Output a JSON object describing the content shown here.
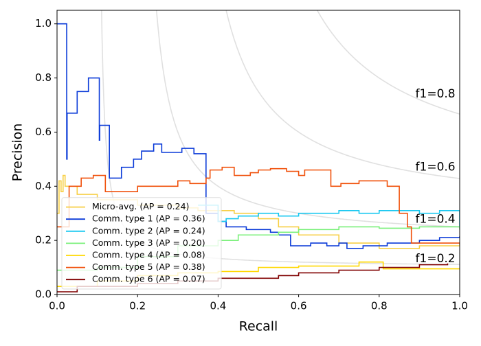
{
  "chart_data": {
    "type": "step",
    "xlabel": "Recall",
    "ylabel": "Precision",
    "xlim": [
      0,
      1
    ],
    "ylim": [
      0,
      1.05
    ],
    "xticks": [
      {
        "value": 0,
        "label": "0.0"
      },
      0.2,
      0.4,
      0.6,
      0.8,
      {
        "value": 1,
        "label": "1.0"
      }
    ],
    "yticks": [
      {
        "value": 0,
        "label": "0.0"
      },
      0.2,
      0.4,
      0.6,
      0.8,
      {
        "value": 1,
        "label": "1.0"
      }
    ],
    "iso_f1": [
      {
        "value": 0.2,
        "label": "f1=0.2"
      },
      {
        "value": 0.4,
        "label": "f1=0.4"
      },
      {
        "value": 0.6,
        "label": "f1=0.6"
      },
      {
        "value": 0.8,
        "label": "f1=0.8"
      }
    ],
    "legend": "lower left",
    "series": [
      {
        "name": "Micro-avg. (AP = 0.24)",
        "color": "#f7cf45",
        "x": [
          0,
          0.005,
          0.01,
          0.015,
          0.02,
          0.05,
          0.1,
          0.2,
          0.3,
          0.35,
          0.4,
          0.44,
          0.5,
          0.55,
          0.6,
          0.7,
          0.8,
          0.9,
          1.0
        ],
        "values": [
          0.3,
          0.42,
          0.38,
          0.44,
          0.4,
          0.37,
          0.35,
          0.33,
          0.32,
          0.31,
          0.31,
          0.3,
          0.28,
          0.25,
          0.22,
          0.19,
          0.17,
          0.18,
          0.19
        ]
      },
      {
        "name": "Comm. type 1 (AP = 0.36)",
        "color": "#0a3ad8",
        "x": [
          0,
          0.024,
          0.025,
          0.05,
          0.078,
          0.105,
          0.106,
          0.13,
          0.16,
          0.19,
          0.21,
          0.24,
          0.26,
          0.29,
          0.31,
          0.34,
          0.37,
          0.4,
          0.42,
          0.47,
          0.53,
          0.55,
          0.58,
          0.63,
          0.67,
          0.7,
          0.72,
          0.76,
          0.82,
          0.9,
          0.95,
          1.0
        ],
        "values": [
          1.0,
          0.5,
          0.67,
          0.75,
          0.8,
          0.57,
          0.625,
          0.43,
          0.47,
          0.5,
          0.53,
          0.556,
          0.525,
          0.525,
          0.54,
          0.52,
          0.3,
          0.27,
          0.25,
          0.24,
          0.23,
          0.22,
          0.18,
          0.19,
          0.18,
          0.19,
          0.17,
          0.18,
          0.19,
          0.2,
          0.21,
          0.215
        ]
      },
      {
        "name": "Comm. type 2 (AP = 0.24)",
        "color": "#19c8f0",
        "x": [
          0.35,
          0.4,
          0.42,
          0.45,
          0.5,
          0.55,
          0.6,
          0.7,
          0.75,
          0.8,
          0.9,
          0.95,
          1.0
        ],
        "values": [
          0.33,
          0.27,
          0.28,
          0.29,
          0.3,
          0.29,
          0.3,
          0.31,
          0.3,
          0.31,
          0.3,
          0.31,
          0.25
        ]
      },
      {
        "name": "Comm. type 3 (AP = 0.20)",
        "color": "#7af07a",
        "x": [
          0,
          0.1,
          0.2,
          0.3,
          0.4,
          0.45,
          0.55,
          0.6,
          0.7,
          0.8,
          0.9,
          1.0
        ],
        "values": [
          0.09,
          0.1,
          0.14,
          0.18,
          0.2,
          0.22,
          0.23,
          0.24,
          0.25,
          0.245,
          0.25,
          0.24
        ]
      },
      {
        "name": "Comm. type 4 (AP = 0.08)",
        "color": "#ffd800",
        "x": [
          0,
          0.1,
          0.2,
          0.3,
          0.4,
          0.5,
          0.6,
          0.75,
          0.81,
          1.0
        ],
        "values": [
          0.03,
          0.05,
          0.07,
          0.08,
          0.085,
          0.1,
          0.105,
          0.12,
          0.095,
          0.095
        ]
      },
      {
        "name": "Comm. type 5 (AP = 0.38)",
        "color": "#f0500a",
        "x": [
          0,
          0.03,
          0.06,
          0.09,
          0.12,
          0.2,
          0.3,
          0.33,
          0.37,
          0.38,
          0.41,
          0.44,
          0.48,
          0.5,
          0.53,
          0.57,
          0.6,
          0.615,
          0.68,
          0.705,
          0.75,
          0.82,
          0.85,
          0.87,
          0.88,
          1.0
        ],
        "values": [
          0.25,
          0.4,
          0.43,
          0.44,
          0.38,
          0.4,
          0.42,
          0.41,
          0.43,
          0.46,
          0.47,
          0.44,
          0.45,
          0.46,
          0.465,
          0.455,
          0.44,
          0.46,
          0.4,
          0.41,
          0.42,
          0.4,
          0.3,
          0.25,
          0.19,
          0.19
        ]
      },
      {
        "name": "Comm. type 6 (AP = 0.07)",
        "color": "#800000",
        "x": [
          0,
          0.05,
          0.2,
          0.3,
          0.4,
          0.55,
          0.6,
          0.7,
          0.8,
          0.9,
          0.97
        ],
        "values": [
          0.01,
          0.03,
          0.04,
          0.05,
          0.06,
          0.07,
          0.08,
          0.09,
          0.1,
          0.11,
          0.115
        ]
      }
    ]
  }
}
